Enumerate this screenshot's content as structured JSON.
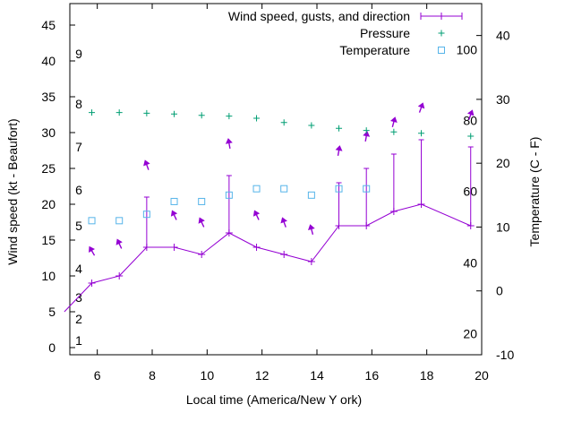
{
  "chart_data": {
    "type": "line",
    "xlabel": "Local time (America/New  york)",
    "xlabel_display": "Local time (America/New Y ork)",
    "ylabel": "Wind speed (kt - Beaufort)",
    "y2label": "Temperature (C - F)",
    "xlim": [
      5,
      20
    ],
    "ylim": [
      -1,
      48
    ],
    "y2lim": [
      -10,
      45
    ],
    "x_ticks": [
      6,
      8,
      10,
      12,
      14,
      16,
      18,
      20
    ],
    "y_ticks": [
      0,
      5,
      10,
      15,
      20,
      25,
      30,
      35,
      40,
      45
    ],
    "y2_ticks": [
      -10,
      0,
      10,
      20,
      30,
      40
    ],
    "beaufort_labels": [
      {
        "label": "1",
        "y": 1
      },
      {
        "label": "2",
        "y": 4
      },
      {
        "label": "3",
        "y": 7
      },
      {
        "label": "4",
        "y": 11
      },
      {
        "label": "5",
        "y": 17
      },
      {
        "label": "6",
        "y": 22
      },
      {
        "label": "7",
        "y": 28
      },
      {
        "label": "8",
        "y": 34
      },
      {
        "label": "9",
        "y": 41
      }
    ],
    "fahrenheit_labels": [
      {
        "label": "20",
        "c": -6.7
      },
      {
        "label": "40",
        "c": 4.4
      },
      {
        "label": "60",
        "c": 15.6
      },
      {
        "label": "80",
        "c": 26.7
      },
      {
        "label": "100",
        "c": 37.8
      }
    ],
    "legend": {
      "placement": "top-right",
      "entries": [
        "Wind speed, gusts, and direction",
        "Pressure",
        "Temperature"
      ]
    },
    "series": [
      {
        "name": "Wind speed, gusts, and direction",
        "x": [
          4.8,
          5.8,
          6.8,
          7.8,
          8.8,
          9.8,
          10.8,
          11.8,
          12.8,
          13.8,
          14.8,
          15.8,
          16.8,
          17.8,
          19.6
        ],
        "values": [
          5,
          9,
          10,
          14,
          14,
          13,
          16,
          14,
          13,
          12,
          17,
          17,
          19,
          20,
          17
        ],
        "gusts": [
          null,
          null,
          null,
          21,
          null,
          null,
          24,
          null,
          null,
          null,
          23,
          25,
          27,
          29,
          28
        ],
        "direction_arrows": [
          {
            "x": 5.8,
            "y": 13.5,
            "angle": -30
          },
          {
            "x": 6.8,
            "y": 14.5,
            "angle": -25
          },
          {
            "x": 7.8,
            "y": 25.5,
            "angle": -20
          },
          {
            "x": 8.8,
            "y": 18.5,
            "angle": -25
          },
          {
            "x": 9.8,
            "y": 17.5,
            "angle": -25
          },
          {
            "x": 10.8,
            "y": 28.5,
            "angle": -10
          },
          {
            "x": 11.8,
            "y": 18.5,
            "angle": -25
          },
          {
            "x": 12.8,
            "y": 17.5,
            "angle": -20
          },
          {
            "x": 13.8,
            "y": 16.5,
            "angle": -15
          },
          {
            "x": 14.8,
            "y": 27.5,
            "angle": 10
          },
          {
            "x": 15.8,
            "y": 29.5,
            "angle": 10
          },
          {
            "x": 16.8,
            "y": 31.5,
            "angle": 15
          },
          {
            "x": 17.8,
            "y": 33.5,
            "angle": 20
          },
          {
            "x": 19.6,
            "y": 32.5,
            "angle": 20
          }
        ],
        "color": "#9400d3"
      },
      {
        "name": "Pressure",
        "x": [
          5.8,
          6.8,
          7.8,
          8.8,
          9.8,
          10.8,
          11.8,
          12.8,
          13.8,
          14.8,
          15.8,
          16.8,
          17.8,
          19.6
        ],
        "values": [
          32.8,
          32.8,
          32.7,
          32.6,
          32.4,
          32.3,
          32.0,
          31.4,
          31.0,
          30.6,
          30.3,
          30.1,
          29.9,
          29.5
        ],
        "color": "#009e73"
      },
      {
        "name": "Temperature",
        "x": [
          5.8,
          6.8,
          7.8,
          8.8,
          9.8,
          10.8,
          11.8,
          12.8,
          13.8,
          14.8,
          15.8
        ],
        "values_c": [
          11,
          11,
          12,
          14,
          14,
          15,
          16,
          16,
          15,
          16,
          16
        ],
        "color": "#56b4e9"
      }
    ]
  }
}
